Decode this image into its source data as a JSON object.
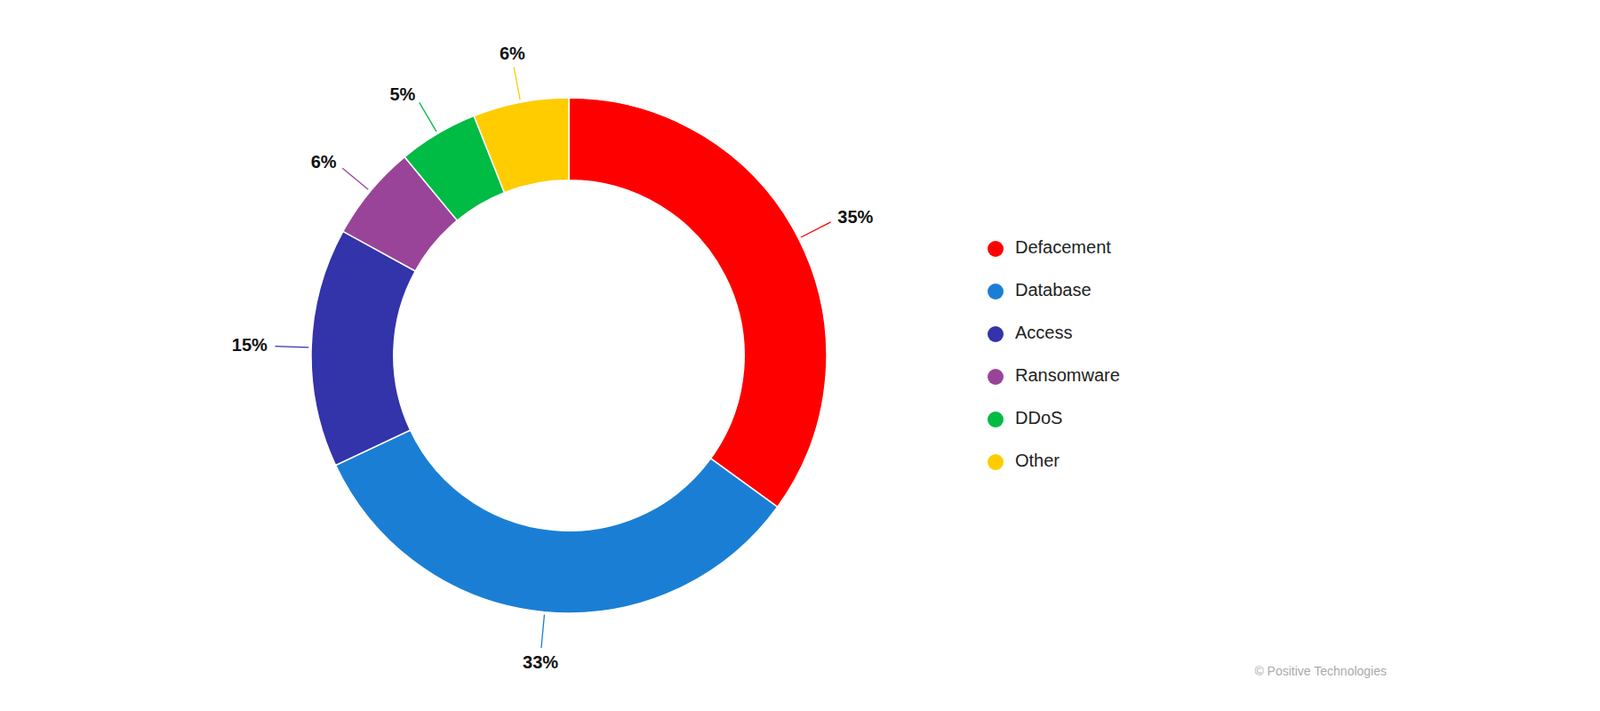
{
  "chart_data": {
    "type": "donut",
    "categories": [
      "Defacement",
      "Database",
      "Access",
      "Ransomware",
      "DDoS",
      "Other"
    ],
    "values": [
      35,
      33,
      15,
      6,
      5,
      6
    ],
    "value_labels": [
      "35%",
      "33%",
      "15%",
      "6%",
      "5%",
      "6%"
    ],
    "colors": [
      "#ff0000",
      "#1a7fd4",
      "#3333aa",
      "#994499",
      "#00bb44",
      "#ffcc00"
    ],
    "data_labels": true,
    "legend": "right",
    "annotations": [
      "© Positive Technologies"
    ]
  }
}
